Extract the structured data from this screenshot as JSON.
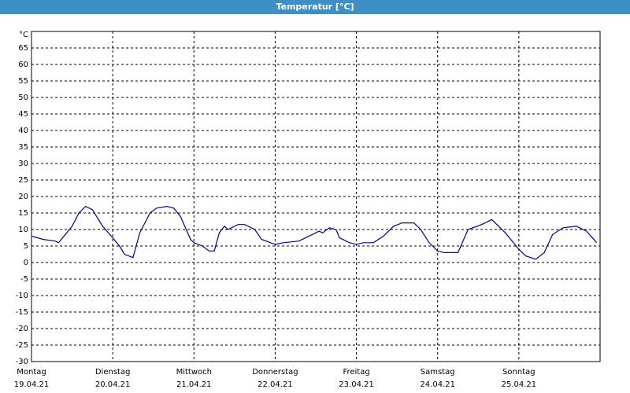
{
  "header": {
    "title": "Temperatur [°C]"
  },
  "chart_data": {
    "type": "line",
    "y_label": "°C",
    "color": "#0000a0",
    "grid": true,
    "xlim": [
      0,
      168
    ],
    "ylim": [
      -30,
      70
    ],
    "yticks": [
      -30,
      -25,
      -20,
      -15,
      -10,
      -5,
      0,
      5,
      10,
      15,
      20,
      25,
      30,
      35,
      40,
      45,
      50,
      55,
      60,
      65
    ],
    "xticks": [
      {
        "value": 0,
        "label": "Montag",
        "sublabel": "19.04.21"
      },
      {
        "value": 24,
        "label": "Dienstag",
        "sublabel": "20.04.21"
      },
      {
        "value": 48,
        "label": "Mittwoch",
        "sublabel": "21.04.21"
      },
      {
        "value": 72,
        "label": "Donnerstag",
        "sublabel": "22.04.21"
      },
      {
        "value": 96,
        "label": "Freitag",
        "sublabel": "23.04.21"
      },
      {
        "value": 120,
        "label": "Samstag",
        "sublabel": "24.04.21"
      },
      {
        "value": 144,
        "label": "Sonntag",
        "sublabel": "25.04.21"
      }
    ],
    "x": [
      0,
      3.5,
      7,
      8,
      12,
      14,
      16,
      18,
      21,
      24,
      26,
      27.5,
      30,
      32,
      35,
      37,
      40,
      42,
      44,
      47,
      48,
      50.5,
      52.5,
      54,
      55.5,
      57,
      58,
      61,
      63,
      66,
      68,
      72,
      74.5,
      79,
      83,
      85,
      86,
      88,
      90,
      91,
      94,
      96,
      98,
      101,
      104,
      107,
      109.5,
      113,
      115,
      117.5,
      120,
      122,
      126,
      129,
      133,
      136,
      140,
      144,
      146,
      149,
      151.5,
      154,
      157,
      161,
      164,
      167
    ],
    "values": [
      8,
      7,
      6.5,
      6,
      11,
      15,
      17,
      16,
      11,
      7.5,
      5,
      2.5,
      1.5,
      9,
      15,
      16.5,
      17,
      16.5,
      14,
      7,
      6,
      5,
      3.5,
      3.5,
      9,
      11,
      10,
      11.5,
      11.5,
      10,
      7,
      5.5,
      6,
      6.5,
      8.5,
      9.5,
      9,
      10.5,
      10,
      7.5,
      6,
      5.5,
      6,
      6,
      8,
      11,
      12,
      12,
      10,
      6,
      3.5,
      3,
      3,
      10,
      11.5,
      13,
      9,
      4,
      2,
      1,
      3,
      8.5,
      10.5,
      11,
      9.5,
      6
    ]
  }
}
